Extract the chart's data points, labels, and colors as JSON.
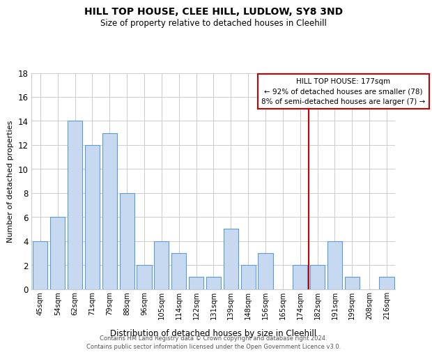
{
  "title": "HILL TOP HOUSE, CLEE HILL, LUDLOW, SY8 3ND",
  "subtitle": "Size of property relative to detached houses in Cleehill",
  "xlabel": "Distribution of detached houses by size in Cleehill",
  "ylabel": "Number of detached properties",
  "bar_labels": [
    "45sqm",
    "54sqm",
    "62sqm",
    "71sqm",
    "79sqm",
    "88sqm",
    "96sqm",
    "105sqm",
    "114sqm",
    "122sqm",
    "131sqm",
    "139sqm",
    "148sqm",
    "156sqm",
    "165sqm",
    "174sqm",
    "182sqm",
    "191sqm",
    "199sqm",
    "208sqm",
    "216sqm"
  ],
  "bar_values": [
    4,
    6,
    14,
    12,
    13,
    8,
    2,
    4,
    3,
    1,
    1,
    5,
    2,
    3,
    0,
    2,
    2,
    4,
    1,
    0,
    1
  ],
  "bar_color": "#c6d9f0",
  "bar_edge_color": "#5b9bd5",
  "vline_x": 15.5,
  "vline_color": "#cc0000",
  "ylim": [
    0,
    18
  ],
  "yticks": [
    0,
    2,
    4,
    6,
    8,
    10,
    12,
    14,
    16,
    18
  ],
  "annotation_title": "HILL TOP HOUSE: 177sqm",
  "annotation_line1": "← 92% of detached houses are smaller (78)",
  "annotation_line2": "8% of semi-detached houses are larger (7) →",
  "annotation_box_color": "#ffffff",
  "annotation_box_edge": "#cc0000",
  "footer_line1": "Contains HM Land Registry data © Crown copyright and database right 2024.",
  "footer_line2": "Contains public sector information licensed under the Open Government Licence v3.0.",
  "background_color": "#ffffff",
  "grid_color": "#cccccc"
}
